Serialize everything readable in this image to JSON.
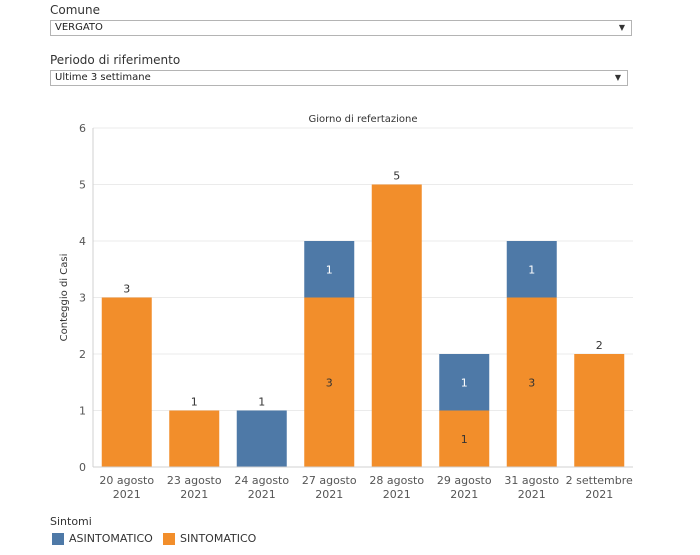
{
  "filters": {
    "comune": {
      "label": "Comune",
      "value": "VERGATO"
    },
    "periodo": {
      "label": "Periodo di riferimento",
      "value": "Ultime 3 settimane"
    }
  },
  "colors": {
    "asintomatico": "#4e79a7",
    "sintomatico": "#f28e2b",
    "grid": "#ebebeb",
    "axis": "#d0d0d0"
  },
  "chart_data": {
    "type": "bar",
    "stacked": true,
    "title": "Giorno di refertazione",
    "xlabel": "",
    "ylabel": "Conteggio di Casi",
    "ylim": [
      0,
      6
    ],
    "yticks": [
      0,
      1,
      2,
      3,
      4,
      5,
      6
    ],
    "grid": true,
    "categories": [
      [
        "20 agosto",
        "2021"
      ],
      [
        "23 agosto",
        "2021"
      ],
      [
        "24 agosto",
        "2021"
      ],
      [
        "27 agosto",
        "2021"
      ],
      [
        "28 agosto",
        "2021"
      ],
      [
        "29 agosto",
        "2021"
      ],
      [
        "31 agosto",
        "2021"
      ],
      [
        "2 settembre",
        "2021"
      ]
    ],
    "series": [
      {
        "name": "SINTOMATICO",
        "values": [
          3,
          1,
          0,
          3,
          5,
          1,
          3,
          2
        ]
      },
      {
        "name": "ASINTOMATICO",
        "values": [
          0,
          0,
          1,
          1,
          0,
          1,
          1,
          0
        ]
      }
    ],
    "legend": {
      "title": "Sintomi",
      "placement": "bottom-left",
      "items": [
        "ASINTOMATICO",
        "SINTOMATICO"
      ]
    }
  }
}
